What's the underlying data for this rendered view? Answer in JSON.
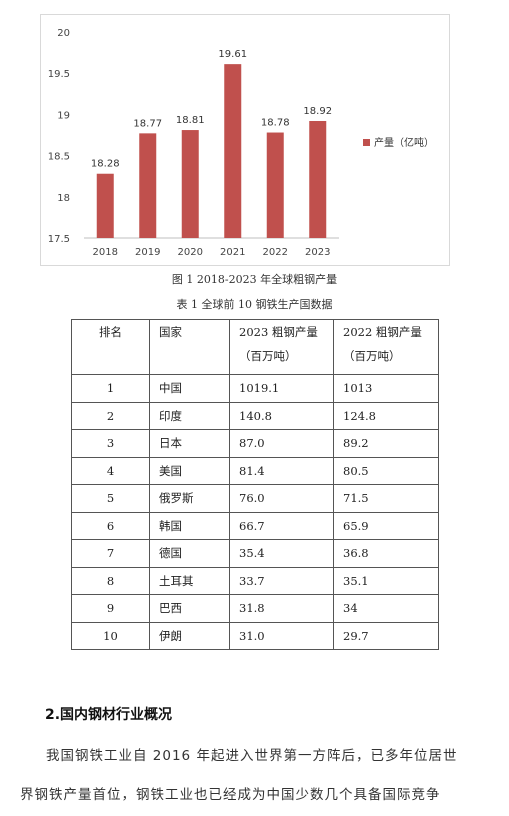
{
  "chart_data": {
    "type": "bar",
    "categories": [
      "2018",
      "2019",
      "2020",
      "2021",
      "2022",
      "2023"
    ],
    "values": [
      18.28,
      18.77,
      18.81,
      19.61,
      18.78,
      18.92
    ],
    "data_labels": [
      "18.28",
      "18.77",
      "18.81",
      "19.61",
      "18.78",
      "18.92"
    ],
    "ylim": [
      17.5,
      20
    ],
    "y_ticks": [
      "17.5",
      "18",
      "18.5",
      "19",
      "19.5",
      "20"
    ],
    "y_tick_values": [
      17.5,
      18,
      18.5,
      19,
      19.5,
      20
    ],
    "legend": "产量（亿吨）",
    "legend_position": "right",
    "bar_color": "#c0504d",
    "grid": false
  },
  "figure_caption": "图 1 2018-2023 年全球粗钢产量",
  "table_caption": "表 1   全球前 10 钢铁生产国数据",
  "table": {
    "headers": {
      "rank": "排名",
      "country": "国家",
      "col2023_line1": "2023 粗钢产量",
      "col2023_line2": "（百万吨）",
      "col2022_line1": "2022 粗钢产量",
      "col2022_line2": "（百万吨）"
    },
    "rows": [
      {
        "rank": "1",
        "country": "中国",
        "v2023": "1019.1",
        "v2022": "1013"
      },
      {
        "rank": "2",
        "country": "印度",
        "v2023": "140.8",
        "v2022": "124.8"
      },
      {
        "rank": "3",
        "country": "日本",
        "v2023": "87.0",
        "v2022": "89.2"
      },
      {
        "rank": "4",
        "country": "美国",
        "v2023": "81.4",
        "v2022": "80.5"
      },
      {
        "rank": "5",
        "country": "俄罗斯",
        "v2023": "76.0",
        "v2022": "71.5"
      },
      {
        "rank": "6",
        "country": "韩国",
        "v2023": "66.7",
        "v2022": "65.9"
      },
      {
        "rank": "7",
        "country": "德国",
        "v2023": "35.4",
        "v2022": "36.8"
      },
      {
        "rank": "8",
        "country": "土耳其",
        "v2023": "33.7",
        "v2022": "35.1"
      },
      {
        "rank": "9",
        "country": "巴西",
        "v2023": "31.8",
        "v2022": "34"
      },
      {
        "rank": "10",
        "country": "伊朗",
        "v2023": "31.0",
        "v2022": "29.7"
      }
    ]
  },
  "section": {
    "heading": "2.国内钢材行业概况",
    "line1": "我国钢铁工业自 2016 年起进入世界第一方阵后，已多年位居世",
    "line2": "界钢铁产量首位，钢铁工业也已经成为中国少数几个具备国际竞争"
  }
}
